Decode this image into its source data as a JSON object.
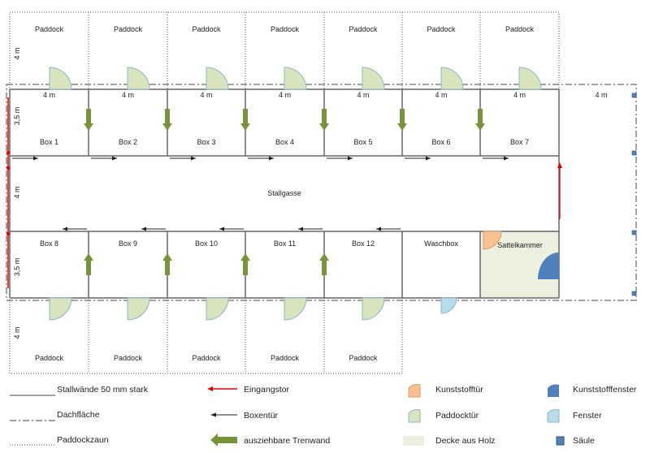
{
  "paddock_label": "Paddock",
  "top_boxes": [
    "Box 1",
    "Box 2",
    "Box 3",
    "Box 4",
    "Box 5",
    "Box 6",
    "Box 7"
  ],
  "bottom_boxes": [
    "Box 8",
    "Box 9",
    "Box 10",
    "Box 11",
    "Box 12"
  ],
  "washroom": "Waschbox",
  "tack_room": "Sattelkammer",
  "aisle": "Stallgasse",
  "dimensions": {
    "width": "4 m",
    "paddock_depth": "4 m",
    "box_depth": "3,5 m",
    "aisle_width": "4 m"
  },
  "legend": {
    "walls": "Stallwände 50 mm stark",
    "roof": "Dachfläche",
    "fence": "Paddockzaun",
    "entrance": "Eingangstor",
    "box_door": "Boxentür",
    "partition": "ausziehbare Trenwand",
    "plastic_door": "Kunststofftür",
    "paddock_door": "Paddocktür",
    "wood_ceiling": "Decke aus Holz",
    "plastic_window": "Kunststofffenster",
    "window": "Fenster",
    "pillar": "Säule"
  },
  "colors": {
    "paddock_door": "#d8e4bc",
    "plastic_door": "#fac090",
    "plastic_window": "#4f81bd",
    "window": "#b7dde8",
    "wood_ceiling": "#ebf1de",
    "partition": "#77933c",
    "entrance": "#e00000",
    "pillar": "#4f81bd"
  }
}
